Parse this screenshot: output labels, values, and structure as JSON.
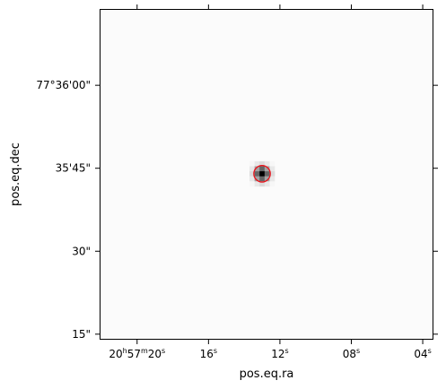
{
  "chart_data": {
    "type": "heatmap",
    "title": "",
    "xlabel": "pos.eq.ra",
    "ylabel": "pos.eq.dec",
    "colormap": "grayscale-inverted",
    "image_background": "#fbfbfb",
    "grid": false,
    "x_ticks": [
      {
        "label": "20",
        "h": "h",
        "m": "57",
        "m_unit": "m",
        "s": "20",
        "s_unit": "s",
        "ra_seconds": 20,
        "full": true
      },
      {
        "label": "16",
        "s_unit": "s",
        "ra_seconds": 16
      },
      {
        "label": "12",
        "s_unit": "s",
        "ra_seconds": 12
      },
      {
        "label": "08",
        "s_unit": "s",
        "ra_seconds": 8
      },
      {
        "label": "04",
        "s_unit": "s",
        "ra_seconds": 4
      }
    ],
    "x_range_seconds": [
      22.1,
      3.4
    ],
    "y_ticks": [
      {
        "label": "77°36'00\"",
        "dec_arcsec": 60
      },
      {
        "label": "35'45\"",
        "dec_arcsec": 45
      },
      {
        "label": "30\"",
        "dec_arcsec": 30
      },
      {
        "label": "15\"",
        "dec_arcsec": 15
      }
    ],
    "y_range_arcsec": [
      14.0,
      73.8
    ],
    "source": {
      "ra_seconds": 13.0,
      "dec_arcsec": 44.0,
      "marker": "circle",
      "marker_color": "#e8141c",
      "marker_radius_arcsec": 2.4,
      "peak_intensity": 1.0,
      "fwhm_arcsec": 2.1
    }
  }
}
